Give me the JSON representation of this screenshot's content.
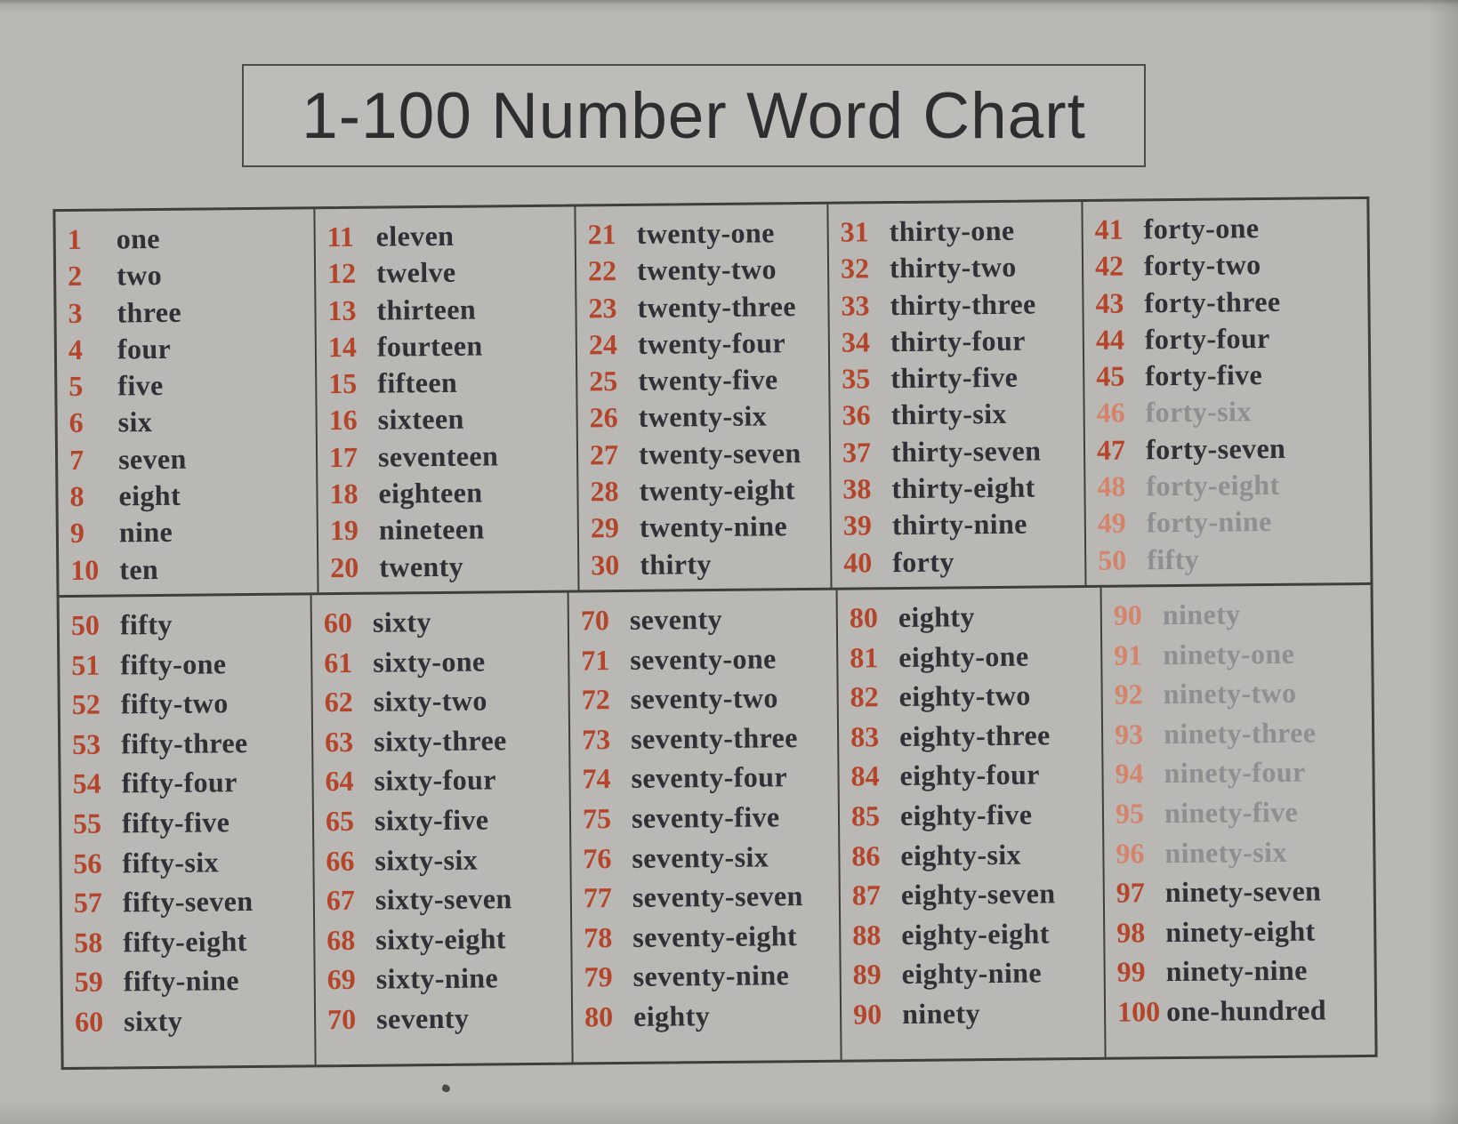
{
  "title": "1-100 Number Word Chart",
  "colors": {
    "number": "#b5452a",
    "word": "#303036",
    "faded_word": "#8f8f92",
    "faded_number": "#d5836a",
    "border": "#3f3e3b",
    "title": "#2e2e31"
  },
  "table": {
    "sections": [
      {
        "range": "1-50",
        "cells": [
          {
            "entries": [
              {
                "num": "1",
                "word": "one"
              },
              {
                "num": "2",
                "word": "two"
              },
              {
                "num": "3",
                "word": "three"
              },
              {
                "num": "4",
                "word": "four"
              },
              {
                "num": "5",
                "word": "five"
              },
              {
                "num": "6",
                "word": "six"
              },
              {
                "num": "7",
                "word": "seven"
              },
              {
                "num": "8",
                "word": "eight"
              },
              {
                "num": "9",
                "word": "nine"
              },
              {
                "num": "10",
                "word": "ten"
              }
            ]
          },
          {
            "entries": [
              {
                "num": "11",
                "word": "eleven"
              },
              {
                "num": "12",
                "word": "twelve"
              },
              {
                "num": "13",
                "word": "thirteen"
              },
              {
                "num": "14",
                "word": "fourteen"
              },
              {
                "num": "15",
                "word": "fifteen"
              },
              {
                "num": "16",
                "word": "sixteen"
              },
              {
                "num": "17",
                "word": "seventeen"
              },
              {
                "num": "18",
                "word": "eighteen"
              },
              {
                "num": "19",
                "word": "nineteen"
              },
              {
                "num": "20",
                "word": "twenty"
              }
            ]
          },
          {
            "entries": [
              {
                "num": "21",
                "word": "twenty-one"
              },
              {
                "num": "22",
                "word": "twenty-two"
              },
              {
                "num": "23",
                "word": "twenty-three"
              },
              {
                "num": "24",
                "word": "twenty-four"
              },
              {
                "num": "25",
                "word": "twenty-five"
              },
              {
                "num": "26",
                "word": "twenty-six"
              },
              {
                "num": "27",
                "word": "twenty-seven"
              },
              {
                "num": "28",
                "word": "twenty-eight"
              },
              {
                "num": "29",
                "word": "twenty-nine"
              },
              {
                "num": "30",
                "word": "thirty"
              }
            ]
          },
          {
            "entries": [
              {
                "num": "31",
                "word": "thirty-one"
              },
              {
                "num": "32",
                "word": "thirty-two"
              },
              {
                "num": "33",
                "word": "thirty-three"
              },
              {
                "num": "34",
                "word": "thirty-four"
              },
              {
                "num": "35",
                "word": "thirty-five"
              },
              {
                "num": "36",
                "word": "thirty-six"
              },
              {
                "num": "37",
                "word": "thirty-seven"
              },
              {
                "num": "38",
                "word": "thirty-eight"
              },
              {
                "num": "39",
                "word": "thirty-nine"
              },
              {
                "num": "40",
                "word": "forty"
              }
            ]
          },
          {
            "entries": [
              {
                "num": "41",
                "word": "forty-one"
              },
              {
                "num": "42",
                "word": "forty-two"
              },
              {
                "num": "43",
                "word": "forty-three"
              },
              {
                "num": "44",
                "word": "forty-four"
              },
              {
                "num": "45",
                "word": "forty-five"
              },
              {
                "num": "46",
                "word": "forty-six",
                "faded": true
              },
              {
                "num": "47",
                "word": "forty-seven"
              },
              {
                "num": "48",
                "word": "forty-eight",
                "faded": true
              },
              {
                "num": "49",
                "word": "forty-nine",
                "faded": true
              },
              {
                "num": "50",
                "word": "fifty",
                "faded": true
              }
            ]
          }
        ]
      },
      {
        "range": "50-100",
        "cells": [
          {
            "entries": [
              {
                "num": "50",
                "word": "fifty"
              },
              {
                "num": "51",
                "word": "fifty-one"
              },
              {
                "num": "52",
                "word": "fifty-two"
              },
              {
                "num": "53",
                "word": "fifty-three"
              },
              {
                "num": "54",
                "word": "fifty-four"
              },
              {
                "num": "55",
                "word": "fifty-five"
              },
              {
                "num": "56",
                "word": "fifty-six"
              },
              {
                "num": "57",
                "word": "fifty-seven"
              },
              {
                "num": "58",
                "word": "fifty-eight"
              },
              {
                "num": "59",
                "word": "fifty-nine"
              },
              {
                "num": "60",
                "word": "sixty"
              }
            ]
          },
          {
            "entries": [
              {
                "num": "60",
                "word": "sixty"
              },
              {
                "num": "61",
                "word": "sixty-one"
              },
              {
                "num": "62",
                "word": "sixty-two"
              },
              {
                "num": "63",
                "word": "sixty-three"
              },
              {
                "num": "64",
                "word": "sixty-four"
              },
              {
                "num": "65",
                "word": "sixty-five"
              },
              {
                "num": "66",
                "word": "sixty-six"
              },
              {
                "num": "67",
                "word": "sixty-seven"
              },
              {
                "num": "68",
                "word": "sixty-eight"
              },
              {
                "num": "69",
                "word": "sixty-nine"
              },
              {
                "num": "70",
                "word": "seventy"
              }
            ]
          },
          {
            "entries": [
              {
                "num": "70",
                "word": "seventy"
              },
              {
                "num": "71",
                "word": "seventy-one"
              },
              {
                "num": "72",
                "word": "seventy-two"
              },
              {
                "num": "73",
                "word": "seventy-three"
              },
              {
                "num": "74",
                "word": "seventy-four"
              },
              {
                "num": "75",
                "word": "seventy-five"
              },
              {
                "num": "76",
                "word": "seventy-six"
              },
              {
                "num": "77",
                "word": "seventy-seven"
              },
              {
                "num": "78",
                "word": "seventy-eight"
              },
              {
                "num": "79",
                "word": "seventy-nine"
              },
              {
                "num": "80",
                "word": "eighty"
              }
            ]
          },
          {
            "entries": [
              {
                "num": "80",
                "word": "eighty"
              },
              {
                "num": "81",
                "word": "eighty-one"
              },
              {
                "num": "82",
                "word": "eighty-two"
              },
              {
                "num": "83",
                "word": "eighty-three"
              },
              {
                "num": "84",
                "word": "eighty-four"
              },
              {
                "num": "85",
                "word": "eighty-five"
              },
              {
                "num": "86",
                "word": "eighty-six"
              },
              {
                "num": "87",
                "word": "eighty-seven"
              },
              {
                "num": "88",
                "word": "eighty-eight"
              },
              {
                "num": "89",
                "word": "eighty-nine"
              },
              {
                "num": "90",
                "word": "ninety"
              }
            ]
          },
          {
            "entries": [
              {
                "num": "90",
                "word": "ninety",
                "faded": true
              },
              {
                "num": "91",
                "word": "ninety-one",
                "faded": true
              },
              {
                "num": "92",
                "word": "ninety-two",
                "faded": true
              },
              {
                "num": "93",
                "word": "ninety-three",
                "faded": true
              },
              {
                "num": "94",
                "word": "ninety-four",
                "faded": true
              },
              {
                "num": "95",
                "word": "ninety-five",
                "faded": true
              },
              {
                "num": "96",
                "word": "ninety-six",
                "faded": true
              },
              {
                "num": "97",
                "word": "ninety-seven"
              },
              {
                "num": "98",
                "word": "ninety-eight"
              },
              {
                "num": "99",
                "word": "ninety-nine"
              },
              {
                "num": "100",
                "word": "one-hundred"
              }
            ]
          }
        ]
      }
    ]
  }
}
